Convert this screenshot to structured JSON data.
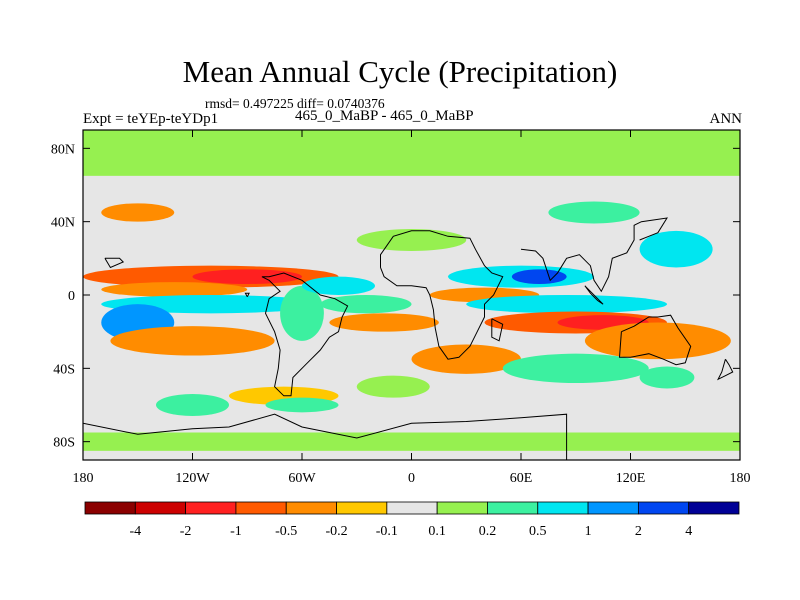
{
  "header": {
    "title": "Mean Annual Cycle (Precipitation)",
    "stats": "rmsd= 0.497225 diff= 0.0740376",
    "left_label": "Expt = teYEp-teYDp1",
    "center_label": "465_0_MaBP - 465_0_MaBP",
    "right_label": "ANN"
  },
  "chart_data": {
    "type": "heatmap",
    "title": "Mean Annual Cycle (Precipitation)",
    "subtitle": "465_0_MaBP - 465_0_MaBP",
    "x_ticks": [
      "180",
      "120W",
      "60W",
      "0",
      "60E",
      "120E",
      "180"
    ],
    "x_tick_values": [
      -180,
      -120,
      -60,
      0,
      60,
      120,
      180
    ],
    "y_ticks": [
      "80N",
      "40N",
      "0",
      "40S",
      "80S"
    ],
    "y_tick_values": [
      80,
      40,
      0,
      -40,
      -80
    ],
    "xlim": [
      -180,
      180
    ],
    "ylim": [
      -90,
      90
    ],
    "colorbar": {
      "levels": [
        "-4",
        "-2",
        "-1",
        "-0.5",
        "-0.2",
        "-0.1",
        "0.1",
        "0.2",
        "0.5",
        "1",
        "2",
        "4"
      ],
      "colors": [
        "#8b0000",
        "#cc0000",
        "#ff2020",
        "#ff5a00",
        "#ff8c00",
        "#ffc800",
        "#e6e6e6",
        "#96f050",
        "#3cf0a0",
        "#00e6f0",
        "#0096ff",
        "#0046f0",
        "#000096"
      ]
    },
    "bands": [
      {
        "lat_min": 65,
        "lat_max": 90,
        "value": 0.15
      },
      {
        "lat_min": -85,
        "lat_max": -75,
        "value": 0.15
      }
    ],
    "regions": [
      {
        "lon": -110,
        "lat": 10,
        "rlon": 70,
        "rlat": 6,
        "value": -0.7
      },
      {
        "lon": -90,
        "lat": 10,
        "rlon": 30,
        "rlat": 4,
        "value": -1.3
      },
      {
        "lon": -130,
        "lat": 3,
        "rlon": 40,
        "rlat": 4,
        "value": -0.3
      },
      {
        "lon": -110,
        "lat": -5,
        "rlon": 60,
        "rlat": 5,
        "value": 0.7
      },
      {
        "lon": -150,
        "lat": -15,
        "rlon": 20,
        "rlat": 10,
        "value": 1.2
      },
      {
        "lon": -120,
        "lat": -25,
        "rlon": 45,
        "rlat": 8,
        "value": -0.4
      },
      {
        "lon": -60,
        "lat": -10,
        "rlon": 12,
        "rlat": 15,
        "value": 0.35
      },
      {
        "lon": -40,
        "lat": 5,
        "rlon": 20,
        "rlat": 5,
        "value": 0.8
      },
      {
        "lon": -25,
        "lat": -5,
        "rlon": 25,
        "rlat": 5,
        "value": 0.4
      },
      {
        "lon": -15,
        "lat": -15,
        "rlon": 30,
        "rlat": 5,
        "value": -0.5
      },
      {
        "lon": 60,
        "lat": 10,
        "rlon": 40,
        "rlat": 6,
        "value": 0.8
      },
      {
        "lon": 70,
        "lat": 10,
        "rlon": 15,
        "rlat": 4,
        "value": 2.2
      },
      {
        "lon": 40,
        "lat": 0,
        "rlon": 30,
        "rlat": 4,
        "value": -0.5
      },
      {
        "lon": 85,
        "lat": -5,
        "rlon": 55,
        "rlat": 5,
        "value": 0.5
      },
      {
        "lon": 90,
        "lat": -15,
        "rlon": 50,
        "rlat": 6,
        "value": -0.7
      },
      {
        "lon": 105,
        "lat": -15,
        "rlon": 25,
        "rlat": 4,
        "value": -1.3
      },
      {
        "lon": 135,
        "lat": -25,
        "rlon": 40,
        "rlat": 10,
        "value": -0.3
      },
      {
        "lon": 145,
        "lat": 25,
        "rlon": 20,
        "rlat": 10,
        "value": 0.6
      },
      {
        "lon": 0,
        "lat": 30,
        "rlon": 30,
        "rlat": 6,
        "value": 0.15
      },
      {
        "lon": 100,
        "lat": 45,
        "rlon": 25,
        "rlat": 6,
        "value": 0.3
      },
      {
        "lon": -150,
        "lat": 45,
        "rlon": 20,
        "rlat": 5,
        "value": -0.3
      },
      {
        "lon": 30,
        "lat": -35,
        "rlon": 30,
        "rlat": 8,
        "value": -0.3
      },
      {
        "lon": 90,
        "lat": -40,
        "rlon": 40,
        "rlat": 8,
        "value": 0.2
      },
      {
        "lon": -70,
        "lat": -55,
        "rlon": 30,
        "rlat": 5,
        "value": -0.15
      },
      {
        "lon": -60,
        "lat": -60,
        "rlon": 20,
        "rlat": 4,
        "value": 0.35
      },
      {
        "lon": 140,
        "lat": -45,
        "rlon": 15,
        "rlat": 6,
        "value": 0.3
      },
      {
        "lon": -120,
        "lat": -60,
        "rlon": 20,
        "rlat": 6,
        "value": 0.2
      },
      {
        "lon": -10,
        "lat": -50,
        "rlon": 20,
        "rlat": 6,
        "value": 0.15
      }
    ],
    "coastlines": [
      [
        [
          -168,
          20
        ],
        [
          -160,
          20
        ],
        [
          -158,
          18
        ],
        [
          -165,
          15
        ],
        [
          -168,
          20
        ]
      ],
      [
        [
          -82,
          10
        ],
        [
          -78,
          8
        ],
        [
          -75,
          5
        ],
        [
          -72,
          2
        ],
        [
          -78,
          -2
        ],
        [
          -80,
          -10
        ],
        [
          -75,
          -20
        ],
        [
          -72,
          -30
        ],
        [
          -73,
          -40
        ],
        [
          -75,
          -50
        ],
        [
          -70,
          -55
        ],
        [
          -66,
          -55
        ],
        [
          -65,
          -45
        ],
        [
          -58,
          -38
        ],
        [
          -50,
          -30
        ],
        [
          -45,
          -23
        ],
        [
          -40,
          -20
        ],
        [
          -38,
          -12
        ],
        [
          -35,
          -6
        ],
        [
          -42,
          -2
        ],
        [
          -50,
          0
        ],
        [
          -60,
          8
        ],
        [
          -70,
          12
        ],
        [
          -78,
          10
        ],
        [
          -82,
          10
        ]
      ],
      [
        [
          -17,
          15
        ],
        [
          -15,
          10
        ],
        [
          -8,
          5
        ],
        [
          0,
          5
        ],
        [
          8,
          4
        ],
        [
          10,
          0
        ],
        [
          12,
          -8
        ],
        [
          13,
          -18
        ],
        [
          15,
          -28
        ],
        [
          20,
          -35
        ],
        [
          26,
          -34
        ],
        [
          32,
          -28
        ],
        [
          36,
          -20
        ],
        [
          40,
          -12
        ],
        [
          40,
          -5
        ],
        [
          45,
          0
        ],
        [
          50,
          10
        ],
        [
          44,
          12
        ],
        [
          40,
          16
        ],
        [
          35,
          25
        ],
        [
          32,
          31
        ],
        [
          20,
          32
        ],
        [
          10,
          35
        ],
        [
          0,
          35
        ],
        [
          -10,
          32
        ],
        [
          -17,
          22
        ],
        [
          -17,
          15
        ]
      ],
      [
        [
          60,
          25
        ],
        [
          68,
          24
        ],
        [
          72,
          20
        ],
        [
          76,
          8
        ],
        [
          80,
          12
        ],
        [
          85,
          20
        ],
        [
          92,
          22
        ],
        [
          98,
          16
        ],
        [
          100,
          8
        ],
        [
          104,
          2
        ],
        [
          108,
          10
        ],
        [
          110,
          20
        ],
        [
          118,
          23
        ],
        [
          122,
          30
        ],
        [
          122,
          38
        ],
        [
          126,
          40
        ],
        [
          140,
          42
        ],
        [
          135,
          34
        ],
        [
          130,
          32
        ],
        [
          125,
          30
        ]
      ],
      [
        [
          115,
          -20
        ],
        [
          114,
          -34
        ],
        [
          120,
          -34
        ],
        [
          130,
          -32
        ],
        [
          138,
          -35
        ],
        [
          145,
          -38
        ],
        [
          150,
          -37
        ],
        [
          153,
          -28
        ],
        [
          146,
          -18
        ],
        [
          142,
          -11
        ],
        [
          135,
          -12
        ],
        [
          130,
          -12
        ],
        [
          122,
          -17
        ],
        [
          115,
          -20
        ]
      ],
      [
        [
          172,
          -35
        ],
        [
          174,
          -38
        ],
        [
          176,
          -42
        ],
        [
          172,
          -44
        ],
        [
          168,
          -46
        ],
        [
          170,
          -42
        ],
        [
          172,
          -35
        ]
      ],
      [
        [
          -180,
          -70
        ],
        [
          -150,
          -76
        ],
        [
          -120,
          -73
        ],
        [
          -100,
          -72
        ],
        [
          -75,
          -65
        ],
        [
          -60,
          -72
        ],
        [
          -30,
          -78
        ],
        [
          0,
          -70
        ],
        [
          30,
          -69
        ],
        [
          60,
          -67
        ],
        [
          85,
          -65
        ],
        [
          85,
          -90
        ],
        [
          -180,
          -90
        ]
      ],
      [
        [
          -90,
          -1
        ],
        [
          -91,
          1
        ],
        [
          -89,
          1
        ],
        [
          -90,
          -1
        ]
      ],
      [
        [
          44,
          -13
        ],
        [
          50,
          -16
        ],
        [
          48,
          -25
        ],
        [
          44,
          -23
        ],
        [
          44,
          -13
        ]
      ],
      [
        [
          95,
          5
        ],
        [
          105,
          -5
        ],
        [
          102,
          -3
        ],
        [
          98,
          1
        ],
        [
          95,
          5
        ]
      ]
    ]
  }
}
